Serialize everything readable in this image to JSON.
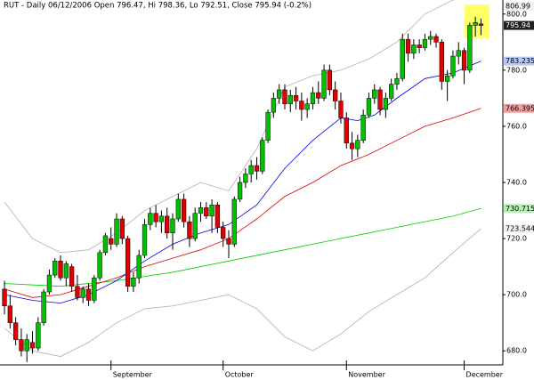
{
  "chart_data": {
    "type": "candlestick",
    "title": "RUT - Daily 06/12/2006 Open 796.47, Hi 798.36, Lo 792.51, Close 795.94 (-0.2%)",
    "up_color": "#00c000",
    "down_color": "#e00000",
    "open": [
      702,
      696,
      690,
      684,
      680,
      683,
      681,
      690,
      701,
      707,
      712,
      706,
      710,
      703,
      699,
      702,
      698,
      706,
      715,
      720,
      718,
      727,
      720,
      703,
      706,
      714,
      725,
      729,
      726,
      728,
      722,
      727,
      734,
      726,
      720,
      729,
      731,
      728,
      732,
      724,
      720,
      718,
      734,
      740,
      743,
      746,
      744,
      755,
      765,
      770,
      773,
      768,
      771,
      769,
      766,
      768,
      772,
      770,
      780,
      773,
      769,
      763,
      754,
      752,
      755,
      764,
      770,
      773,
      766,
      770,
      775,
      777,
      791,
      786,
      789,
      788,
      791,
      792,
      790,
      776,
      778,
      785,
      787,
      780,
      796,
      796.47
    ],
    "high": [
      705,
      700,
      692,
      688,
      686,
      687,
      692,
      702,
      709,
      713,
      714,
      712,
      711,
      707,
      703,
      704,
      707,
      716,
      722,
      724,
      729,
      728,
      721,
      708,
      716,
      727,
      731,
      732,
      730,
      731,
      729,
      736,
      736,
      728,
      731,
      733,
      733,
      734,
      733,
      726,
      723,
      735,
      742,
      745,
      748,
      749,
      756,
      766,
      772,
      775,
      775,
      773,
      774,
      772,
      770,
      774,
      776,
      782,
      782,
      776,
      772,
      765,
      758,
      757,
      766,
      772,
      775,
      774,
      772,
      777,
      779,
      793,
      793,
      791,
      791,
      793,
      794,
      793,
      791,
      780,
      787,
      790,
      788,
      797,
      799,
      798.36
    ],
    "low": [
      693,
      688,
      682,
      678,
      676,
      679,
      680,
      689,
      700,
      706,
      705,
      703,
      701,
      698,
      697,
      696,
      697,
      705,
      714,
      716,
      717,
      718,
      701,
      701,
      704,
      713,
      723,
      724,
      722,
      720,
      716,
      726,
      724,
      717,
      719,
      726,
      727,
      722,
      722,
      717,
      713,
      717,
      733,
      738,
      740,
      741,
      743,
      754,
      763,
      768,
      766,
      765,
      766,
      762,
      763,
      766,
      768,
      769,
      771,
      766,
      761,
      752,
      748,
      749,
      754,
      763,
      768,
      764,
      763,
      769,
      773,
      776,
      783,
      784,
      786,
      787,
      789,
      788,
      773,
      769,
      777,
      782,
      775,
      779,
      792,
      792.51
    ],
    "close": [
      696,
      690,
      684,
      680,
      684,
      681,
      690,
      701,
      707,
      712,
      706,
      711,
      703,
      699,
      702,
      698,
      706,
      715,
      721,
      718,
      727,
      720,
      703,
      706,
      714,
      725,
      729,
      726,
      728,
      722,
      727,
      734,
      726,
      720,
      729,
      731,
      728,
      732,
      724,
      720,
      718,
      734,
      740,
      743,
      746,
      744,
      755,
      765,
      770,
      773,
      768,
      771,
      769,
      766,
      768,
      772,
      770,
      780,
      773,
      769,
      763,
      754,
      752,
      755,
      764,
      770,
      773,
      766,
      770,
      775,
      777,
      791,
      786,
      789,
      788,
      791,
      792,
      790,
      776,
      778,
      785,
      787,
      780,
      796,
      797,
      795.94
    ],
    "overlays": [
      {
        "color": "#b0b0b0",
        "x": [
          0,
          5,
          10,
          15,
          20,
          25,
          30,
          35,
          40,
          45,
          50,
          55,
          60,
          65,
          70,
          75,
          80,
          85
        ],
        "values": [
          733,
          720,
          715,
          716,
          722,
          730,
          735,
          740,
          737,
          752,
          774,
          778,
          780,
          784,
          790,
          800,
          805,
          806.99
        ]
      },
      {
        "color": "#b0b0b0",
        "x": [
          0,
          5,
          10,
          15,
          20,
          25,
          30,
          35,
          40,
          45,
          50,
          55,
          60,
          65,
          70,
          75,
          80,
          85
        ],
        "values": [
          688,
          680,
          678,
          683,
          690,
          695,
          696,
          698,
          700,
          695,
          685,
          680,
          686,
          694,
          700,
          706,
          715,
          723.544
        ]
      },
      {
        "color": "#00d000",
        "x": [
          0,
          10,
          20,
          30,
          40,
          50,
          60,
          70,
          80,
          85
        ],
        "values": [
          704,
          703,
          705,
          708,
          712,
          716,
          720,
          724,
          728,
          730.715
        ]
      },
      {
        "color": "#e00000",
        "x": [
          0,
          5,
          10,
          15,
          20,
          25,
          30,
          35,
          40,
          45,
          50,
          55,
          60,
          65,
          70,
          75,
          80,
          85
        ],
        "values": [
          702,
          699,
          700,
          703,
          706,
          710,
          713,
          716,
          720,
          727,
          735,
          740,
          746,
          750,
          755,
          760,
          763,
          766.395
        ]
      },
      {
        "color": "#0000e0",
        "x": [
          0,
          5,
          10,
          15,
          20,
          25,
          30,
          35,
          40,
          45,
          50,
          55,
          60,
          63,
          66,
          70,
          75,
          80,
          85
        ],
        "values": [
          700,
          698,
          697,
          700,
          705,
          712,
          718,
          722,
          725,
          732,
          745,
          755,
          763,
          762,
          764,
          770,
          777,
          779,
          783.235
        ]
      }
    ],
    "xlim": [
      -0.8,
      88.9
    ],
    "ylim": [
      675,
      805
    ],
    "yticks": [
      {
        "value": 680,
        "label": "680.0"
      },
      {
        "value": 700,
        "label": "700.0"
      },
      {
        "value": 720,
        "label": "720.0"
      },
      {
        "value": 740,
        "label": "740.0"
      },
      {
        "value": 760,
        "label": "760.0"
      },
      {
        "value": 780,
        "label": "780.0"
      },
      {
        "value": 800,
        "label": "800.0"
      }
    ],
    "xticks": [
      {
        "value": 19,
        "label": "September"
      },
      {
        "value": 39,
        "label": "October"
      },
      {
        "value": 61,
        "label": "November"
      },
      {
        "value": 82,
        "label": "December"
      }
    ]
  }
}
